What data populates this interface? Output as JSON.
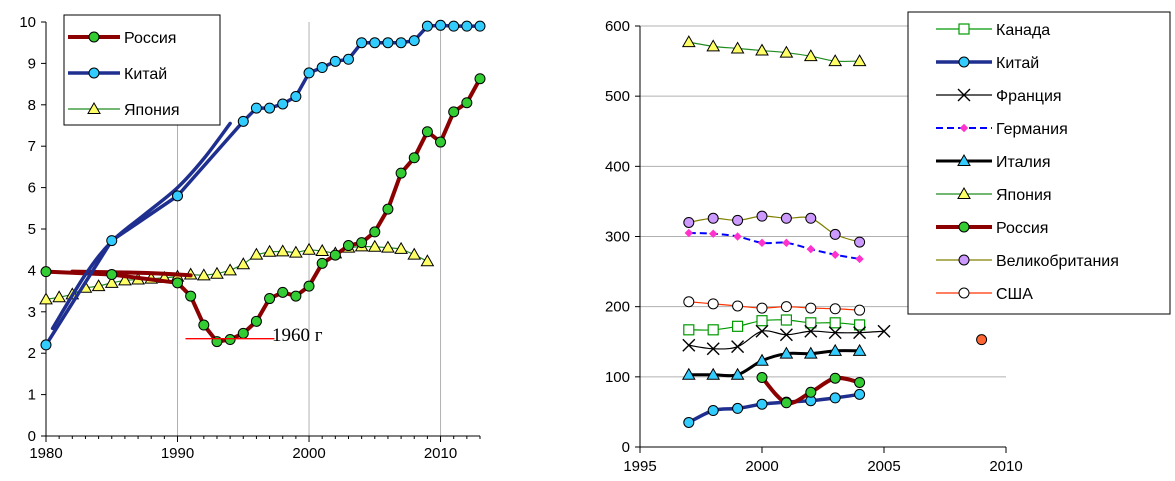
{
  "chart_data": [
    {
      "type": "line",
      "xlim": [
        1980,
        2013
      ],
      "ylim": [
        0,
        10
      ],
      "x_ticks": [
        1980,
        1990,
        2000,
        2010
      ],
      "y_ticks": [
        0,
        1,
        2,
        3,
        4,
        5,
        6,
        7,
        8,
        9,
        10
      ],
      "grid": "vertical",
      "legend": "top-left",
      "annotation": "1960 г",
      "annotation_line": {
        "x": [
          1990,
          1996
        ],
        "y": 2.35
      },
      "series": [
        {
          "name": "Россия",
          "color": "#8b0000",
          "marker": "circle",
          "marker_fill": "#33cc33",
          "width": 4,
          "x": [
            1980,
            1985,
            1990,
            1991,
            1992,
            1993,
            1994,
            1995,
            1996,
            1997,
            1998,
            1999,
            2000,
            2001,
            2002,
            2003,
            2004,
            2005,
            2006,
            2007,
            2008,
            2009,
            2010,
            2011,
            2012,
            2013
          ],
          "y": [
            3.97,
            3.9,
            3.7,
            3.38,
            2.68,
            2.28,
            2.33,
            2.48,
            2.77,
            3.32,
            3.47,
            3.38,
            3.62,
            4.17,
            4.37,
            4.6,
            4.67,
            4.93,
            5.48,
            6.35,
            6.72,
            7.35,
            7.1,
            7.83,
            8.05,
            8.63
          ],
          "trend": {
            "x": [
              1982,
              1986,
              1989,
              1991
            ],
            "y": [
              3.97,
              3.95,
              3.92,
              3.88
            ]
          }
        },
        {
          "name": "Китай",
          "color": "#1f2f8f",
          "marker": "circle",
          "marker_fill": "#33ccff",
          "width": 3.5,
          "x": [
            1980,
            1985,
            1990,
            1995,
            1996,
            1997,
            1998,
            1999,
            2000,
            2001,
            2002,
            2003,
            2004,
            2005,
            2006,
            2007,
            2008,
            2009,
            2010,
            2011,
            2012,
            2013
          ],
          "y": [
            2.2,
            4.72,
            5.8,
            7.6,
            7.92,
            7.92,
            8.02,
            8.2,
            8.77,
            8.9,
            9.05,
            9.1,
            9.5,
            9.5,
            9.5,
            9.5,
            9.55,
            9.9,
            9.92,
            9.9,
            9.9,
            9.9
          ],
          "trend": {
            "x": [
              1980.5,
              1983,
              1985,
              1987.5,
              1990,
              1992,
              1994
            ],
            "y": [
              2.6,
              3.9,
              4.7,
              5.35,
              6.0,
              6.7,
              7.55
            ]
          }
        },
        {
          "name": "Япония",
          "color": "#228b22",
          "marker": "triangle",
          "marker_fill": "#ffff66",
          "width": 1.2,
          "x": [
            1980,
            1981,
            1982,
            1983,
            1984,
            1985,
            1986,
            1987,
            1988,
            1989,
            1990,
            1991,
            1992,
            1993,
            1994,
            1995,
            1996,
            1997,
            1998,
            1999,
            2000,
            2001,
            2002,
            2003,
            2004,
            2005,
            2006,
            2007,
            2008,
            2009
          ],
          "y": [
            3.3,
            3.35,
            3.42,
            3.58,
            3.62,
            3.7,
            3.76,
            3.78,
            3.8,
            3.82,
            3.85,
            3.9,
            3.88,
            3.92,
            4.0,
            4.15,
            4.38,
            4.45,
            4.46,
            4.43,
            4.5,
            4.47,
            4.41,
            4.55,
            4.58,
            4.57,
            4.55,
            4.52,
            4.38,
            4.22
          ]
        }
      ]
    },
    {
      "type": "line",
      "xlim": [
        1995,
        2010
      ],
      "ylim": [
        0,
        600
      ],
      "x_ticks": [
        1995,
        2000,
        2005,
        2010
      ],
      "y_ticks": [
        0,
        100,
        200,
        300,
        400,
        500,
        600
      ],
      "grid": "horizontal",
      "legend": "top-right",
      "series": [
        {
          "name": "Канада",
          "color": "#009900",
          "marker": "square",
          "marker_fill": "#ffffff",
          "width": 1.2,
          "x": [
            1997,
            1998,
            1999,
            2000,
            2001,
            2002,
            2003,
            2004
          ],
          "y": [
            167,
            167,
            172,
            180,
            181,
            177,
            177,
            174
          ]
        },
        {
          "name": "Китай",
          "color": "#1f2f8f",
          "marker": "circle",
          "marker_fill": "#33ccff",
          "width": 3.5,
          "x": [
            1997,
            1998,
            1999,
            2000,
            2001,
            2002,
            2003,
            2004
          ],
          "y": [
            35,
            52,
            55,
            61,
            64,
            66,
            70,
            75
          ]
        },
        {
          "name": "Франция",
          "color": "#000000",
          "marker": "x",
          "marker_fill": "none",
          "width": 1.2,
          "x": [
            1997,
            1998,
            1999,
            2000,
            2001,
            2002,
            2003,
            2004,
            2005
          ],
          "y": [
            145,
            140,
            143,
            165,
            160,
            165,
            163,
            163,
            165
          ]
        },
        {
          "name": "Германия",
          "color": "#0000ff",
          "marker": "diamond",
          "marker_fill": "#ff33cc",
          "width": 2,
          "dash": "7,4",
          "x": [
            1997,
            1998,
            1999,
            2000,
            2001,
            2002,
            2003,
            2004
          ],
          "y": [
            305,
            304,
            300,
            291,
            291,
            282,
            274,
            268
          ]
        },
        {
          "name": "Италия",
          "color": "#000000",
          "marker": "triangle",
          "marker_fill": "#33ccff",
          "width": 3,
          "x": [
            1997,
            1998,
            1999,
            2000,
            2001,
            2002,
            2003,
            2004
          ],
          "y": [
            103,
            103,
            103,
            123,
            133,
            133,
            137,
            137
          ]
        },
        {
          "name": "Япония",
          "color": "#228b22",
          "marker": "triangle",
          "marker_fill": "#ffff66",
          "width": 1.2,
          "x": [
            1997,
            1998,
            1999,
            2000,
            2001,
            2002,
            2003,
            2004
          ],
          "y": [
            577,
            571,
            568,
            565,
            562,
            557,
            550,
            550
          ]
        },
        {
          "name": "Россия",
          "color": "#8b0000",
          "marker": "circle",
          "marker_fill": "#33cc33",
          "width": 4,
          "x": [
            2000,
            2001,
            2002,
            2003,
            2004
          ],
          "y": [
            99,
            63,
            78,
            98,
            92
          ]
        },
        {
          "name": "Великобритания",
          "color": "#808000",
          "marker": "circle",
          "marker_fill": "#cc99ff",
          "width": 1.2,
          "x": [
            1997,
            1998,
            1999,
            2000,
            2001,
            2002,
            2003,
            2004
          ],
          "y": [
            320,
            326,
            323,
            329,
            326,
            326,
            303,
            292
          ]
        },
        {
          "name": "США",
          "color": "#ff3300",
          "marker": "circle",
          "marker_fill": "#ffffff",
          "width": 1.2,
          "x": [
            1997,
            1998,
            1999,
            2000,
            2001,
            2002,
            2003,
            2004
          ],
          "y": [
            207,
            204,
            201,
            198,
            200,
            198,
            197,
            195
          ],
          "extra_points": {
            "x": [
              2009
            ],
            "y": [
              153
            ],
            "marker_fill": "#ff6633"
          }
        }
      ]
    }
  ]
}
